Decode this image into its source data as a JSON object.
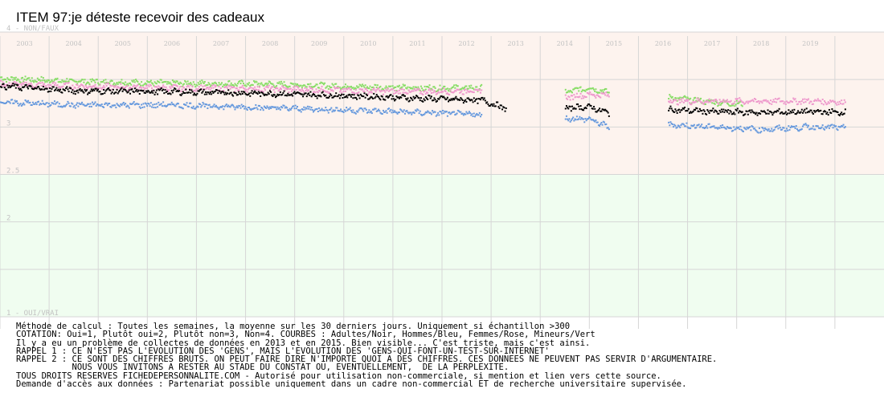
{
  "title": "ITEM 97:je déteste recevoir des cadeaux",
  "notes": [
    "Méthode de calcul : Toutes les semaines, la moyenne sur les 30 derniers jours. Uniquement si échantillon >300",
    "COTATION: Oui=1, Plutôt oui=2, Plutôt non=3, Non=4. COURBES : Adultes/Noir, Hommes/Bleu, Femmes/Rose, Mineurs/Vert",
    "Il y a eu un problème de collectes de données en 2013 et en 2015. Bien visible... C'est triste, mais c'est ainsi.",
    "RAPPEL 1 : CE N'EST PAS L'EVOLUTION DES 'GENS', MAIS L'EVOLUTION DES 'GENS-QUI-FONT-UN-TEST-SUR-INTERNET'",
    "RAPPEL 2 : CE SONT DES CHIFFRES BRUTS. ON PEUT FAIRE DIRE N'IMPORTE QUOI A DES CHIFFRES. CES DONNEES NE PEUVENT PAS SERVIR D'ARGUMENTAIRE.",
    "           NOUS VOUS INVITONS A RESTER AU STADE DU CONSTAT OU, EVENTUELLEMENT,  DE LA PERPLEXITE.",
    "TOUS DROITS RESERVES FICHEDEPERSONNALITE.COM - Autorisé pour utilisation non-commerciale, si mention et lien vers cette source.",
    "Demande d'accès aux données : Partenariat possible uniquement dans un cadre non-commercial ET de recherche universitaire supervisée."
  ],
  "chart_data": {
    "type": "scatter",
    "title": "ITEM 97:je déteste recevoir des cadeaux",
    "x_tick_labels": [
      "2003",
      "2004",
      "2005",
      "2006",
      "2007",
      "2008",
      "2009",
      "2010",
      "2011",
      "2012",
      "2013",
      "2014",
      "2015",
      "2016",
      "2017",
      "2018",
      "2019"
    ],
    "y_tick_labels": [
      {
        "value": 4,
        "label": "4 - NON/FAUX"
      },
      {
        "value": 3,
        "label": "3"
      },
      {
        "value": 2.5,
        "label": "2.5"
      },
      {
        "value": 2,
        "label": "2"
      },
      {
        "value": 1,
        "label": "1 - OUI/VRAI"
      }
    ],
    "ylim": [
      1,
      4
    ],
    "xlim": [
      2002.5,
      2020.5
    ],
    "grid": true,
    "bands": [
      {
        "from": 2.5,
        "to": 4,
        "color": "#fdf3ee"
      },
      {
        "from": 1,
        "to": 2.5,
        "color": "#f0fdf0"
      }
    ],
    "series": [
      {
        "name": "Mineurs",
        "color": "#88dd66",
        "segments": [
          {
            "x": [
              2002.5,
              2004,
              2006,
              2008,
              2010,
              2011,
              2012.3
            ],
            "y": [
              3.52,
              3.49,
              3.47,
              3.46,
              3.43,
              3.42,
              3.42
            ]
          },
          {
            "x": [
              2014,
              2014.5,
              2014.9
            ],
            "y": [
              3.38,
              3.42,
              3.37
            ]
          },
          {
            "x": [
              2016.1,
              2017,
              2017.6
            ],
            "y": [
              3.32,
              3.27,
              3.25
            ]
          }
        ]
      },
      {
        "name": "Femmes",
        "color": "#ee99cc",
        "segments": [
          {
            "x": [
              2002.5,
              2004,
              2006,
              2008,
              2010,
              2011,
              2012.3
            ],
            "y": [
              3.46,
              3.44,
              3.42,
              3.41,
              3.39,
              3.38,
              3.39
            ]
          },
          {
            "x": [
              2014,
              2014.5,
              2014.9
            ],
            "y": [
              3.32,
              3.35,
              3.34
            ]
          },
          {
            "x": [
              2016.1,
              2017,
              2018,
              2019,
              2019.7
            ],
            "y": [
              3.28,
              3.28,
              3.28,
              3.28,
              3.27
            ]
          }
        ]
      },
      {
        "name": "Adultes",
        "color": "#000000",
        "segments": [
          {
            "x": [
              2002.5,
              2004,
              2006,
              2008,
              2010,
              2011,
              2012.3,
              2012.8
            ],
            "y": [
              3.44,
              3.39,
              3.38,
              3.36,
              3.33,
              3.31,
              3.29,
              3.2
            ]
          },
          {
            "x": [
              2014,
              2014.5,
              2014.9
            ],
            "y": [
              3.21,
              3.22,
              3.15
            ]
          },
          {
            "x": [
              2016.1,
              2017,
              2018,
              2019,
              2019.7
            ],
            "y": [
              3.19,
              3.17,
              3.16,
              3.17,
              3.16
            ]
          }
        ]
      },
      {
        "name": "Hommes",
        "color": "#6699dd",
        "segments": [
          {
            "x": [
              2002.5,
              2004,
              2006,
              2008,
              2010,
              2011,
              2012.3
            ],
            "y": [
              3.27,
              3.24,
              3.24,
              3.21,
              3.18,
              3.16,
              3.14
            ]
          },
          {
            "x": [
              2014,
              2014.5,
              2014.9
            ],
            "y": [
              3.1,
              3.09,
              3.0
            ]
          },
          {
            "x": [
              2016.1,
              2017,
              2018,
              2019,
              2019.7
            ],
            "y": [
              3.03,
              3.01,
              2.98,
              3.01,
              3.0
            ]
          }
        ]
      }
    ]
  }
}
